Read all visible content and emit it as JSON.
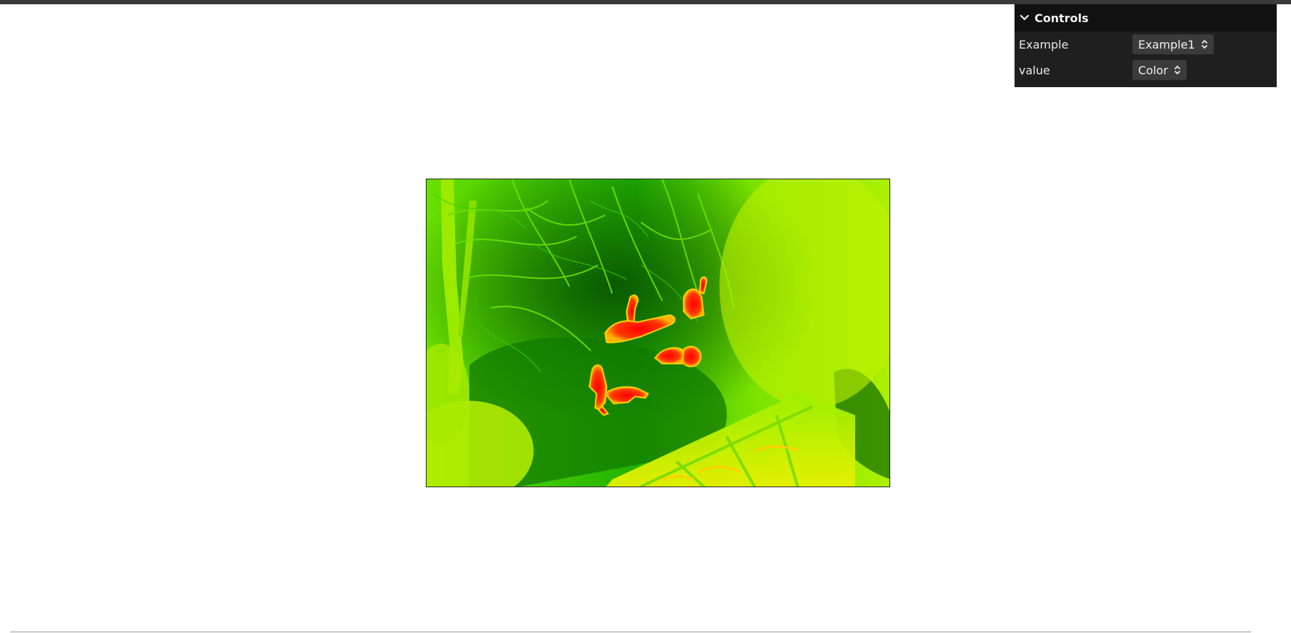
{
  "controls": {
    "title": "Controls",
    "rows": [
      {
        "label": "Example",
        "value": "Example1"
      },
      {
        "label": "value",
        "value": "Color"
      }
    ]
  },
  "viewer": {
    "colors": {
      "background": "#40d400",
      "dark": "#0c6b00",
      "bright": "#b9f000",
      "hot": "#ff1a00",
      "warm": "#ffd000"
    }
  }
}
